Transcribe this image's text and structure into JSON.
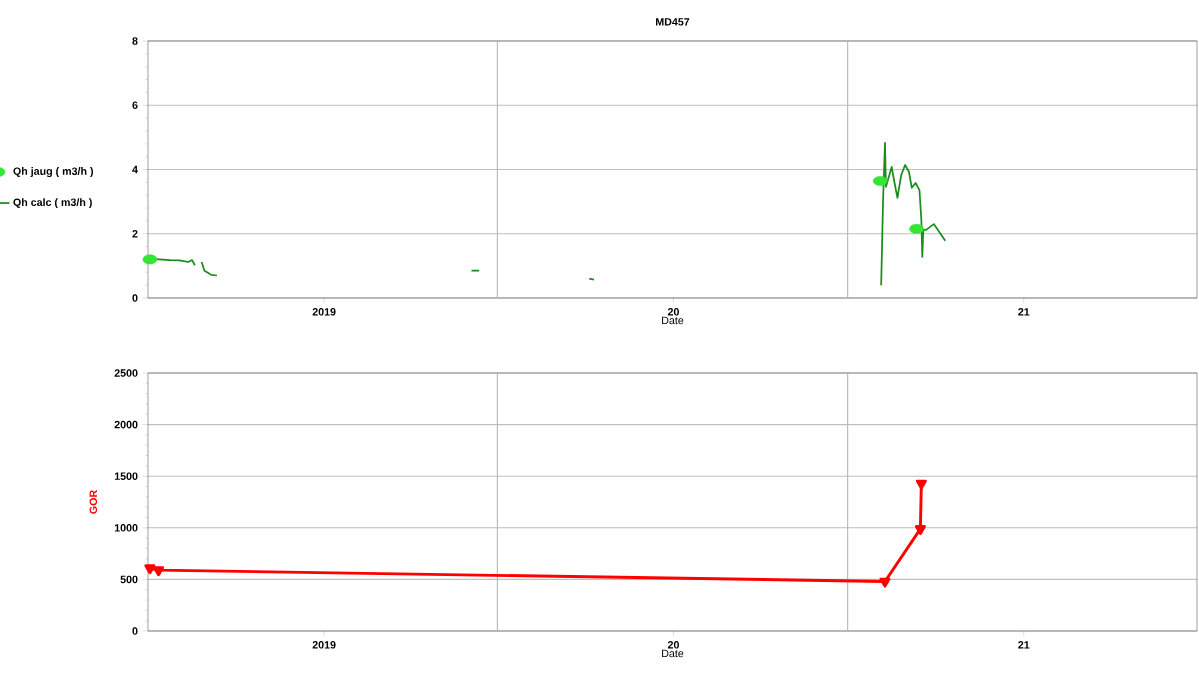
{
  "chart_data": [
    {
      "type": "line",
      "title": "MD457",
      "xlabel": "Date",
      "legend": "left",
      "grid": "y",
      "xlim": [
        "2018-07-01",
        "2021-07-01"
      ],
      "ylim": [
        0,
        8
      ],
      "yticks": [
        0,
        2,
        4,
        6,
        8
      ],
      "xticks": [
        {
          "value": "2019-01-01",
          "label": "2019"
        },
        {
          "value": "2020-01-01",
          "label": "20"
        },
        {
          "value": "2021-01-01",
          "label": "21"
        }
      ],
      "ref_lines": [
        {
          "axis": "x",
          "value": "2019-07-01",
          "color": "#b4b4b4"
        },
        {
          "axis": "x",
          "value": "2020-07-01",
          "color": "#b4b4b4"
        }
      ],
      "series": [
        {
          "name": "Qh jaug ( m3/h )",
          "type": "scatter",
          "marker": "circle",
          "color": "#33e633",
          "x": [
            "2018-07-03",
            "2020-08-04",
            "2020-09-11"
          ],
          "values": [
            1.2,
            3.64,
            2.15
          ]
        },
        {
          "name": "Qh calc ( m3/h )",
          "marker": "none",
          "color": "#1a8c1a",
          "x": [
            "2018-07-03",
            "2018-07-13",
            "2018-07-24",
            "2018-08-03",
            "2018-08-12",
            "2018-08-16",
            "2018-08-19",
            "2018-08-22",
            "2018-08-26",
            "2018-08-29",
            "2018-09-02",
            "2018-09-05",
            "2018-09-11",
            "2019-01-01",
            "2019-06-04",
            "2019-06-12",
            "2019-08-01",
            "2019-10-05",
            "2019-10-10",
            "2020-01-01",
            "2020-08-05",
            "2020-08-06",
            "2020-08-07",
            "2020-08-09",
            "2020-08-10",
            "2020-08-16",
            "2020-08-19",
            "2020-08-22",
            "2020-08-26",
            "2020-08-30",
            "2020-09-03",
            "2020-09-06",
            "2020-09-10",
            "2020-09-14",
            "2020-09-16",
            "2020-09-17",
            "2020-09-18",
            "2020-09-21",
            "2020-09-29",
            "2020-10-11"
          ],
          "values": [
            1.22,
            1.2,
            1.18,
            1.17,
            1.12,
            1.18,
            1.02,
            null,
            1.12,
            0.85,
            0.78,
            0.72,
            0.7,
            null,
            0.85,
            0.85,
            null,
            0.6,
            0.57,
            null,
            0.4,
            1.71,
            3.05,
            4.83,
            3.46,
            4.08,
            3.58,
            3.12,
            3.83,
            4.14,
            3.93,
            3.43,
            3.58,
            3.36,
            2.43,
            1.28,
            2.12,
            2.12,
            2.3,
            1.78
          ]
        }
      ]
    },
    {
      "type": "line",
      "xlabel": "Date",
      "ylabel": "GOR",
      "grid": "y",
      "xlim": [
        "2018-07-01",
        "2021-07-01"
      ],
      "ylim": [
        0,
        2500
      ],
      "yticks": [
        0,
        500,
        1000,
        1500,
        2000,
        2500
      ],
      "xticks": [
        {
          "value": "2019-01-01",
          "label": "2019"
        },
        {
          "value": "2020-01-01",
          "label": "20"
        },
        {
          "value": "2021-01-01",
          "label": "21"
        }
      ],
      "ref_lines": [
        {
          "axis": "x",
          "value": "2019-07-01",
          "color": "#b4b4b4"
        },
        {
          "axis": "x",
          "value": "2020-07-01",
          "color": "#b4b4b4"
        }
      ],
      "series": [
        {
          "marker": "triangle",
          "color": "#ff0000",
          "x": [
            "2018-07-03",
            "2018-07-12",
            "2020-08-09",
            "2020-09-15",
            "2020-09-16"
          ],
          "values": [
            610,
            590,
            480,
            990,
            1430
          ]
        }
      ]
    }
  ]
}
